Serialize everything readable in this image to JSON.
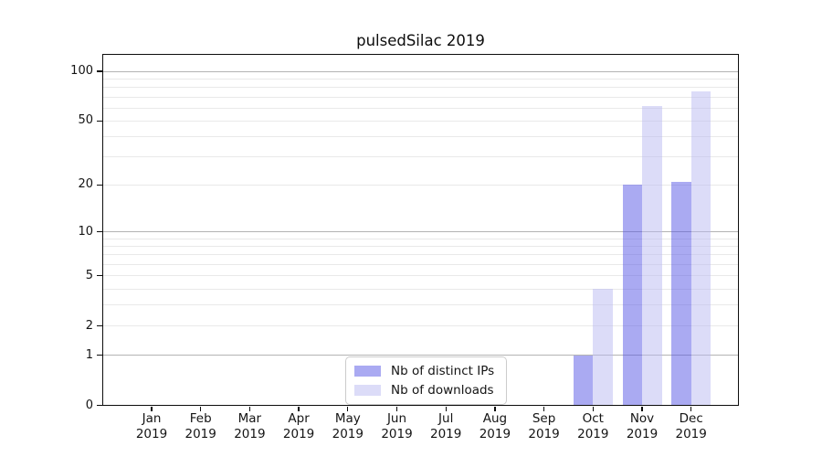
{
  "title": "pulsedSilac 2019",
  "legend": {
    "position": "lower center",
    "items": [
      {
        "label": "Nb of distinct IPs",
        "color": "#5555e6",
        "fill_alpha": 0.5
      },
      {
        "label": "Nb of downloads",
        "color": "#babaf2",
        "fill_alpha": 0.5
      }
    ]
  },
  "chart_data": {
    "type": "bar",
    "title": "pulsedSilac 2019",
    "categories": [
      "Jan 2019",
      "Feb 2019",
      "Mar 2019",
      "Apr 2019",
      "May 2019",
      "Jun 2019",
      "Jul 2019",
      "Aug 2019",
      "Sep 2019",
      "Oct 2019",
      "Nov 2019",
      "Dec 2019"
    ],
    "series": [
      {
        "name": "Nb of distinct IPs",
        "color": "#5555e6",
        "fill_alpha": 0.5,
        "values": [
          0,
          0,
          0,
          0,
          0,
          0,
          0,
          0,
          0,
          1,
          20,
          21
        ]
      },
      {
        "name": "Nb of downloads",
        "color": "#babaf2",
        "fill_alpha": 0.5,
        "values": [
          0,
          0,
          0,
          0,
          0,
          0,
          0,
          0,
          0,
          4,
          62,
          76
        ]
      }
    ],
    "xlabel": "",
    "ylabel": "",
    "yscale": "log1p",
    "ylim": [
      0,
      126
    ],
    "yticks": [
      0,
      1,
      2,
      5,
      10,
      20,
      50,
      100
    ],
    "major_grid": [
      1,
      10,
      100
    ],
    "minor_grid": [
      2,
      3,
      4,
      5,
      6,
      7,
      8,
      9,
      20,
      30,
      40,
      50,
      60,
      70,
      80,
      90
    ],
    "grid": true,
    "legend_position": "lower center"
  }
}
